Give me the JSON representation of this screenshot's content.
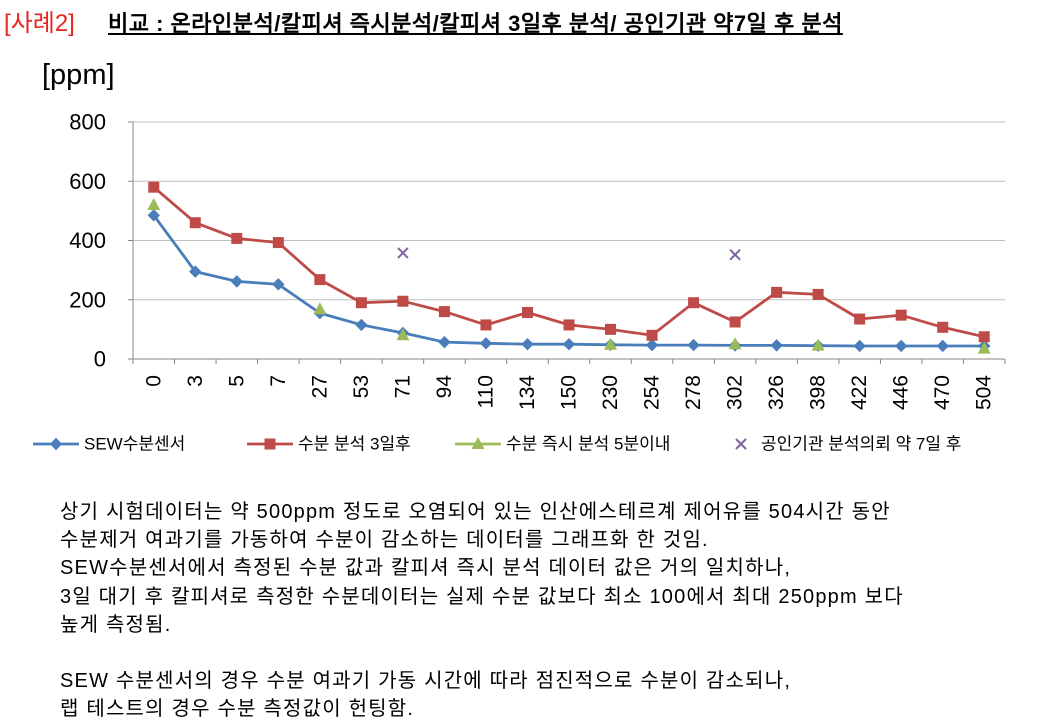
{
  "header": {
    "case_label": "[사례2]",
    "case_label_color": "#e8251f",
    "title": "비교 : 온라인분석/칼피셔 즉시분석/칼피셔 3일후 분석/ 공인기관 약7일 후 분석"
  },
  "chart_data": {
    "type": "line",
    "ylabel": "[ppm]",
    "ylim": [
      0,
      800
    ],
    "yticks": [
      0,
      200,
      400,
      600,
      800
    ],
    "grid": true,
    "legend_position": "bottom",
    "categories": [
      "0",
      "3",
      "5",
      "7",
      "27",
      "53",
      "71",
      "94",
      "110",
      "134",
      "150",
      "230",
      "254",
      "278",
      "302",
      "326",
      "398",
      "422",
      "446",
      "470",
      "504"
    ],
    "series": [
      {
        "name": "SEW수분센서",
        "color": "#4a7ebb",
        "marker": "diamond",
        "line": true,
        "values": [
          485,
          295,
          262,
          252,
          155,
          115,
          88,
          57,
          53,
          50,
          50,
          48,
          47,
          47,
          46,
          46,
          45,
          44,
          44,
          44,
          44
        ]
      },
      {
        "name": "수분 분석 3일후",
        "color": "#be4b48",
        "marker": "square",
        "line": true,
        "values": [
          580,
          460,
          407,
          393,
          268,
          190,
          195,
          160,
          115,
          157,
          115,
          100,
          80,
          190,
          125,
          225,
          218,
          135,
          148,
          107,
          75
        ]
      },
      {
        "name": "수분 즉시 분석 5분이내",
        "color": "#9bbb59",
        "marker": "triangle",
        "line": true,
        "values": [
          520,
          null,
          null,
          null,
          168,
          null,
          80,
          null,
          null,
          null,
          null,
          48,
          null,
          null,
          50,
          null,
          45,
          null,
          null,
          null,
          35
        ]
      },
      {
        "name": "공인기관 분석의뢰 약 7일 후",
        "color": "#7f63a1",
        "marker": "x",
        "line": false,
        "values": [
          null,
          null,
          null,
          null,
          null,
          null,
          358,
          null,
          null,
          null,
          null,
          null,
          null,
          null,
          352,
          null,
          null,
          null,
          null,
          null,
          null
        ]
      }
    ]
  },
  "notes": {
    "paragraphs": [
      [
        "상기 시험데이터는 약 500ppm 정도로 오염되어 있는 인산에스테르계 제어유를 504시간 동안",
        "수분제거 여과기를 가동하여 수분이 감소하는 데이터를 그래프화 한 것임.",
        "SEW수분센서에서 측정된 수분 값과 칼피셔 즉시 분석 데이터 값은 거의 일치하나,",
        "3일 대기 후 칼피셔로 측정한 수분데이터는 실제 수분 값보다 최소 100에서 최대 250ppm 보다",
        "높게 측정됨."
      ],
      [
        "SEW 수분센서의 경우 수분 여과기 가동 시간에 따라 점진적으로 수분이 감소되나,",
        "랩 테스트의 경우 수분 측정값이 헌팅함."
      ]
    ]
  }
}
